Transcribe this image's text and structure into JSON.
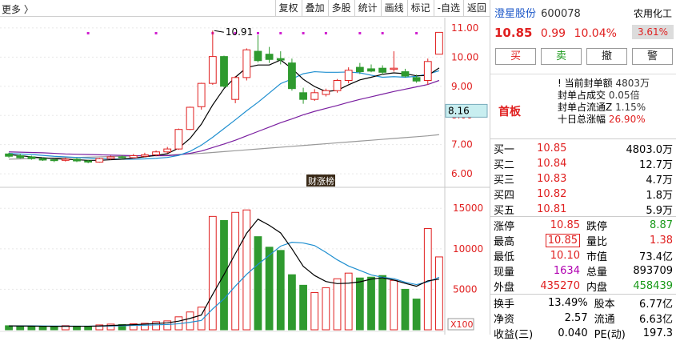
{
  "toolbar": {
    "crumb": "更多 〉",
    "buttons": [
      "复权",
      "叠加",
      "多股",
      "统计",
      "画线",
      "标记",
      "-自选",
      "返回"
    ]
  },
  "chart": {
    "price_ticks": [
      "11.00",
      "10.00",
      "9.00",
      "8.00",
      "7.00",
      "6.00"
    ],
    "current_price_tag": "8.16",
    "high_annotation": "10.91",
    "finance_badge": "财涨榜",
    "volume_ticks": [
      "15000",
      "10000",
      "5000"
    ],
    "volume_unit": "X100",
    "colors": {
      "up": "#e02020",
      "down": "#2f9a2f",
      "ma5": "#000000",
      "ma10": "#1f8fd0",
      "ma20": "#7a1fa0",
      "ma60": "#999999"
    }
  },
  "chart_data": {
    "type": "candlestick",
    "candles": [
      {
        "o": 6.68,
        "h": 6.72,
        "l": 6.55,
        "c": 6.6
      },
      {
        "o": 6.62,
        "h": 6.68,
        "l": 6.52,
        "c": 6.55
      },
      {
        "o": 6.58,
        "h": 6.62,
        "l": 6.48,
        "c": 6.52
      },
      {
        "o": 6.52,
        "h": 6.56,
        "l": 6.44,
        "c": 6.47
      },
      {
        "o": 6.48,
        "h": 6.52,
        "l": 6.4,
        "c": 6.45
      },
      {
        "o": 6.46,
        "h": 6.55,
        "l": 6.42,
        "c": 6.5
      },
      {
        "o": 6.5,
        "h": 6.54,
        "l": 6.4,
        "c": 6.44
      },
      {
        "o": 6.44,
        "h": 6.48,
        "l": 6.36,
        "c": 6.4
      },
      {
        "o": 6.4,
        "h": 6.55,
        "l": 6.38,
        "c": 6.52
      },
      {
        "o": 6.52,
        "h": 6.62,
        "l": 6.48,
        "c": 6.58
      },
      {
        "o": 6.58,
        "h": 6.64,
        "l": 6.5,
        "c": 6.55
      },
      {
        "o": 6.55,
        "h": 6.68,
        "l": 6.52,
        "c": 6.62
      },
      {
        "o": 6.6,
        "h": 6.72,
        "l": 6.56,
        "c": 6.65
      },
      {
        "o": 6.65,
        "h": 6.8,
        "l": 6.6,
        "c": 6.75
      },
      {
        "o": 6.75,
        "h": 6.92,
        "l": 6.7,
        "c": 6.85
      },
      {
        "o": 6.85,
        "h": 7.55,
        "l": 6.82,
        "c": 7.52
      },
      {
        "o": 7.52,
        "h": 8.3,
        "l": 7.5,
        "c": 8.28
      },
      {
        "o": 8.3,
        "h": 9.12,
        "l": 8.2,
        "c": 9.1
      },
      {
        "o": 9.1,
        "h": 10.91,
        "l": 9.05,
        "c": 10.02
      },
      {
        "o": 10.02,
        "h": 10.05,
        "l": 8.95,
        "c": 9.0
      },
      {
        "o": 8.55,
        "h": 9.35,
        "l": 8.42,
        "c": 9.3
      },
      {
        "o": 9.3,
        "h": 10.3,
        "l": 9.2,
        "c": 10.25
      },
      {
        "o": 10.2,
        "h": 10.75,
        "l": 9.82,
        "c": 9.88
      },
      {
        "o": 10.1,
        "h": 10.35,
        "l": 9.8,
        "c": 9.92
      },
      {
        "o": 9.95,
        "h": 10.2,
        "l": 9.75,
        "c": 9.9
      },
      {
        "o": 9.8,
        "h": 9.95,
        "l": 8.85,
        "c": 8.92
      },
      {
        "o": 8.78,
        "h": 8.95,
        "l": 8.4,
        "c": 8.55
      },
      {
        "o": 8.55,
        "h": 8.9,
        "l": 8.5,
        "c": 8.78
      },
      {
        "o": 8.72,
        "h": 8.92,
        "l": 8.65,
        "c": 8.85
      },
      {
        "o": 8.85,
        "h": 9.25,
        "l": 8.78,
        "c": 9.2
      },
      {
        "o": 9.2,
        "h": 9.65,
        "l": 9.1,
        "c": 9.55
      },
      {
        "o": 9.65,
        "h": 9.8,
        "l": 9.42,
        "c": 9.5
      },
      {
        "o": 9.6,
        "h": 9.75,
        "l": 9.48,
        "c": 9.52
      },
      {
        "o": 9.62,
        "h": 9.72,
        "l": 9.4,
        "c": 9.48
      },
      {
        "o": 9.58,
        "h": 10.2,
        "l": 9.5,
        "c": 9.62
      },
      {
        "o": 9.5,
        "h": 9.6,
        "l": 9.3,
        "c": 9.35
      },
      {
        "o": 9.3,
        "h": 9.4,
        "l": 9.12,
        "c": 9.18
      },
      {
        "o": 9.2,
        "h": 9.95,
        "l": 9.05,
        "c": 9.85
      },
      {
        "o": 10.1,
        "h": 10.85,
        "l": 10.1,
        "c": 10.85
      }
    ],
    "ma5": [
      6.66,
      6.62,
      6.58,
      6.55,
      6.52,
      6.5,
      6.48,
      6.46,
      6.46,
      6.48,
      6.5,
      6.54,
      6.58,
      6.63,
      6.69,
      6.88,
      7.21,
      7.7,
      8.36,
      8.92,
      9.31,
      9.64,
      9.73,
      9.73,
      9.9,
      9.61,
      9.24,
      8.99,
      8.82,
      8.86,
      9.05,
      9.22,
      9.31,
      9.41,
      9.46,
      9.43,
      9.36,
      9.37,
      9.63
    ],
    "ma10": [
      6.7,
      6.68,
      6.66,
      6.63,
      6.6,
      6.58,
      6.56,
      6.54,
      6.52,
      6.51,
      6.5,
      6.5,
      6.51,
      6.53,
      6.56,
      6.63,
      6.77,
      6.98,
      7.25,
      7.55,
      7.85,
      8.16,
      8.45,
      8.77,
      9.09,
      9.25,
      9.43,
      9.5,
      9.48,
      9.48,
      9.49,
      9.46,
      9.38,
      9.31,
      9.33,
      9.31,
      9.34,
      9.42,
      9.53
    ],
    "ma20": [
      6.75,
      6.74,
      6.73,
      6.72,
      6.7,
      6.68,
      6.67,
      6.66,
      6.65,
      6.64,
      6.63,
      6.62,
      6.62,
      6.62,
      6.62,
      6.65,
      6.7,
      6.78,
      6.9,
      7.02,
      7.15,
      7.3,
      7.45,
      7.6,
      7.75,
      7.88,
      8.02,
      8.14,
      8.24,
      8.34,
      8.45,
      8.55,
      8.64,
      8.73,
      8.82,
      8.9,
      8.98,
      9.06,
      9.2
    ],
    "ma60": [
      6.5,
      6.51,
      6.52,
      6.53,
      6.54,
      6.55,
      6.56,
      6.57,
      6.58,
      6.59,
      6.6,
      6.61,
      6.62,
      6.63,
      6.64,
      6.66,
      6.68,
      6.7,
      6.73,
      6.76,
      6.79,
      6.82,
      6.85,
      6.88,
      6.91,
      6.94,
      6.97,
      7.0,
      7.03,
      7.06,
      7.09,
      7.12,
      7.15,
      7.18,
      7.21,
      7.24,
      7.27,
      7.3,
      7.34
    ],
    "volume": [
      500,
      450,
      420,
      400,
      380,
      520,
      450,
      400,
      600,
      700,
      650,
      750,
      800,
      1000,
      1100,
      1600,
      2200,
      2800,
      14000,
      13500,
      14500,
      14800,
      11500,
      10200,
      9800,
      6800,
      5500,
      4600,
      5200,
      6300,
      7000,
      6400,
      6500,
      6700,
      6100,
      5000,
      3800,
      12500,
      9000
    ],
    "vol_ma5": [
      480,
      470,
      455,
      440,
      430,
      434,
      440,
      438,
      470,
      534,
      580,
      630,
      700,
      780,
      860,
      1070,
      1410,
      1820,
      4380,
      6820,
      9400,
      11920,
      13660,
      12900,
      11960,
      10000,
      7840,
      6700,
      5960,
      5700,
      5760,
      5920,
      6260,
      6420,
      6140,
      5740,
      5380,
      6040,
      6260
    ],
    "vol_ma10": [
      490,
      485,
      480,
      470,
      460,
      455,
      452,
      450,
      455,
      470,
      505,
      535,
      568,
      610,
      650,
      750,
      925,
      1150,
      2580,
      3820,
      5390,
      6850,
      8080,
      9200,
      10330,
      10810,
      10720,
      10400,
      9560,
      8640,
      7880,
      7330,
      6780,
      6480,
      6320,
      5870,
      5580,
      5920,
      6480
    ],
    "price_ylim": [
      5.7,
      11.3
    ],
    "vol_ylim": [
      0,
      17000
    ]
  },
  "quote": {
    "name": "澄星股份",
    "code": "600078",
    "sector": "农用化工",
    "sector_pct": "3.61%",
    "price": "10.85",
    "change": "0.99",
    "change_pct": "10.04%",
    "trade_buttons": [
      "买",
      "卖",
      "撤",
      "警"
    ],
    "seal_title": "首板",
    "seal_rows": [
      {
        "label": "! 当前封单额",
        "value": "4803万"
      },
      {
        "label": "封单占成交",
        "value": "0.05倍"
      },
      {
        "label": "封单占流通Z",
        "value": "1.15%"
      },
      {
        "label": "十日总涨幅",
        "value": "26.90%"
      }
    ],
    "bids": [
      {
        "label": "买一",
        "price": "10.85",
        "vol": "4803.0万"
      },
      {
        "label": "买二",
        "price": "10.84",
        "vol": "12.7万"
      },
      {
        "label": "买三",
        "price": "10.83",
        "vol": "4.7万"
      },
      {
        "label": "买四",
        "price": "10.82",
        "vol": "1.8万"
      },
      {
        "label": "买五",
        "price": "10.81",
        "vol": "5.9万"
      }
    ],
    "stats": [
      {
        "l1": "涨停",
        "v1": "10.85",
        "c1": "r",
        "l2": "跌停",
        "v2": "8.87",
        "c2": "g"
      },
      {
        "l1": "最高",
        "v1": "10.85",
        "c1": "r boxed",
        "l2": "量比",
        "v2": "1.38",
        "c2": "r"
      },
      {
        "l1": "最低",
        "v1": "10.10",
        "c1": "r",
        "l2": "市值",
        "v2": "73.4亿",
        "c2": "k"
      },
      {
        "l1": "现量",
        "v1": "1634",
        "c1": "m",
        "l2": "总量",
        "v2": "893709",
        "c2": "k"
      },
      {
        "l1": "外盘",
        "v1": "435270",
        "c1": "r",
        "l2": "内盘",
        "v2": "458439",
        "c2": "g"
      }
    ],
    "stats2": [
      {
        "l1": "换手",
        "v1": "13.49%",
        "c1": "k",
        "l2": "股本",
        "v2": "6.77亿",
        "c2": "k"
      },
      {
        "l1": "净资",
        "v1": "2.57",
        "c1": "k",
        "l2": "流通",
        "v2": "6.63亿",
        "c2": "k"
      },
      {
        "l1": "收益(三)",
        "v1": "0.040",
        "c1": "k",
        "l2": "PE(动)",
        "v2": "197.3",
        "c2": "k"
      }
    ]
  }
}
